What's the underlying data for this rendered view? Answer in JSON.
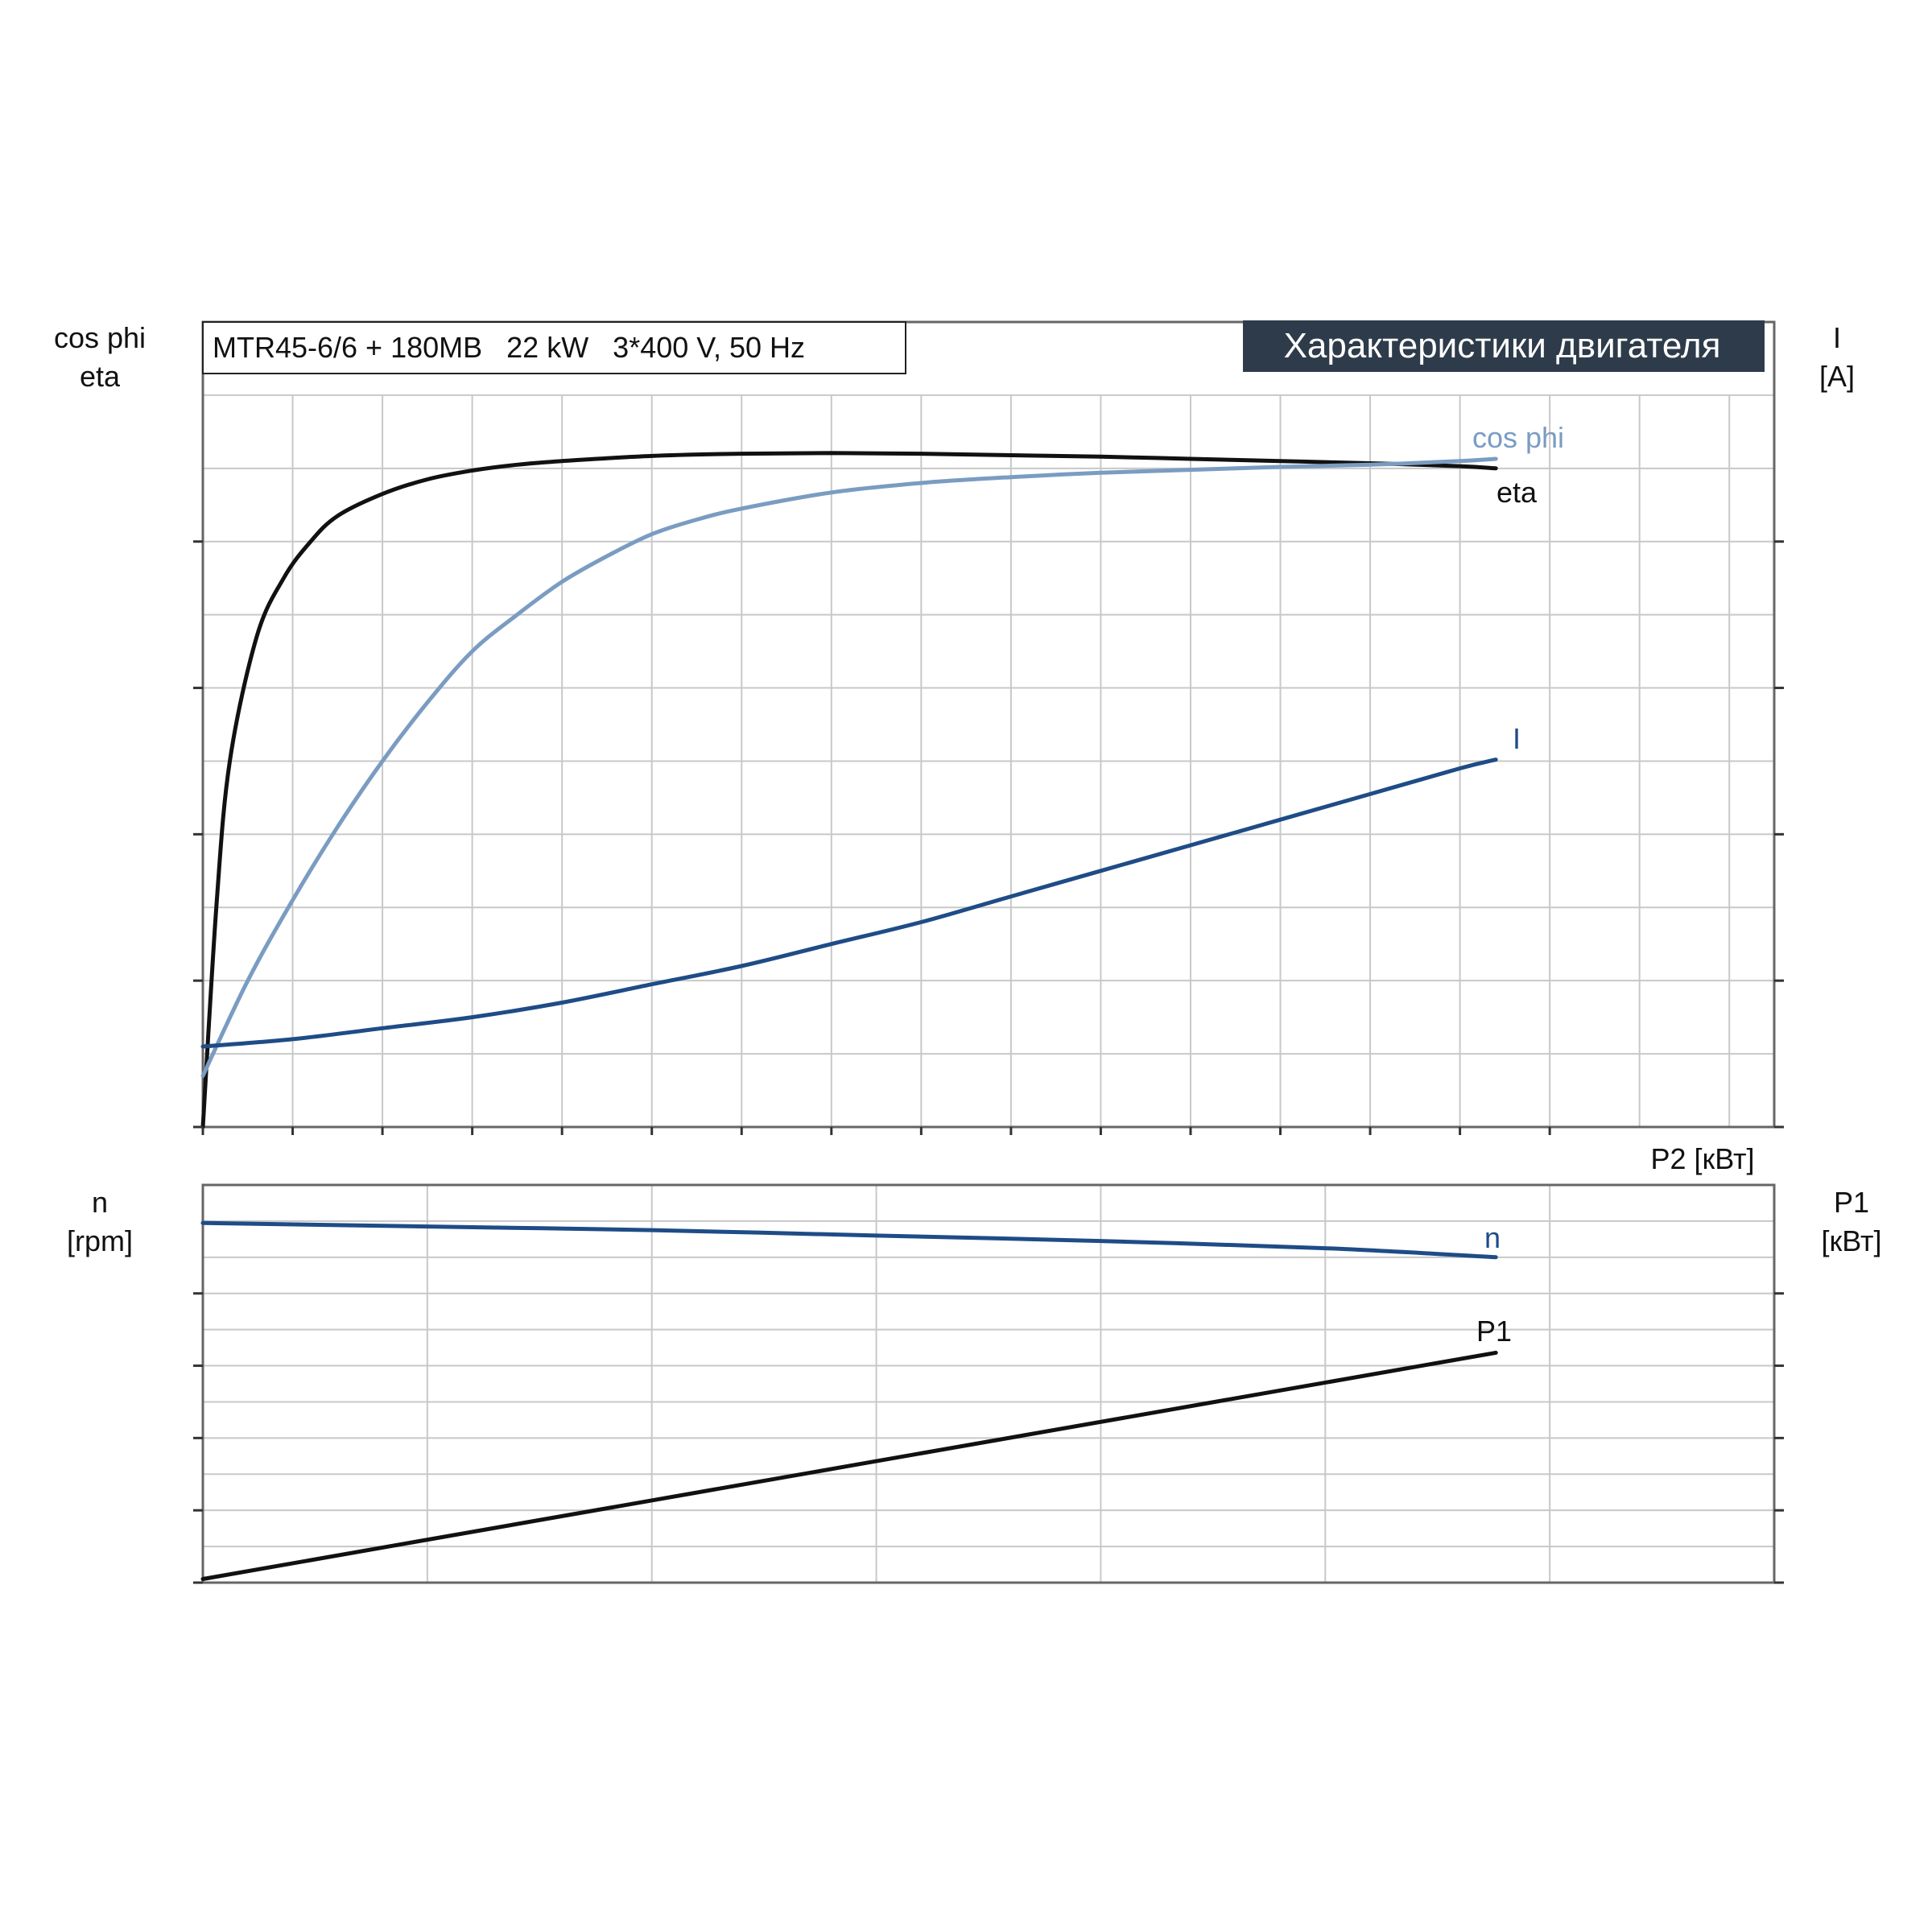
{
  "header": {
    "model": "MTR45-6/6 + 180MB   22 kW   3*400 V, 50 Hz",
    "banner": "Характеристики двигателя"
  },
  "colors": {
    "grid": "#c8c8c8",
    "axis": "#666666",
    "eta": "#111111",
    "cosphi": "#7a9cc2",
    "current": "#1e4c86",
    "speed": "#1e4c86",
    "p1": "#111111",
    "banner_bg": "#2e3b4a",
    "banner_fg": "#ffffff"
  },
  "chart_data": [
    {
      "type": "line",
      "panel": "upper",
      "x_axis": {
        "label": "P2 [кВт]",
        "range": [
          0,
          35
        ],
        "ticks": [
          0,
          2,
          4,
          6,
          8,
          10,
          12,
          14,
          16,
          18,
          20,
          22,
          24,
          26,
          28,
          30
        ]
      },
      "left_axis": {
        "label_lines": [
          "cos phi",
          "eta"
        ],
        "range": [
          0,
          1.1
        ],
        "ticks": [
          "0.0",
          "0.2",
          "0.4",
          "0.6",
          "0.8"
        ]
      },
      "right_axis": {
        "label_lines": [
          "I",
          "[A]"
        ],
        "range": [
          0,
          110
        ],
        "ticks": [
          "0",
          "20",
          "40",
          "60",
          "80"
        ]
      },
      "grid": true,
      "series": [
        {
          "name": "eta",
          "axis": "left",
          "x": [
            0,
            0.3,
            0.6,
            1.2,
            1.8,
            2.4,
            3,
            4,
            5,
            6,
            7,
            8,
            10,
            12,
            14,
            16,
            18,
            20,
            22,
            24,
            26,
            28,
            28.8
          ],
          "values": [
            0,
            0.3,
            0.5,
            0.67,
            0.75,
            0.8,
            0.835,
            0.865,
            0.885,
            0.897,
            0.905,
            0.91,
            0.917,
            0.92,
            0.921,
            0.92,
            0.918,
            0.916,
            0.913,
            0.91,
            0.907,
            0.903,
            0.9
          ]
        },
        {
          "name": "cos phi",
          "axis": "left",
          "x": [
            0,
            1,
            2,
            3,
            4,
            5,
            6,
            7,
            8,
            9,
            10,
            11,
            12,
            14,
            16,
            18,
            20,
            22,
            24,
            26,
            28,
            28.8
          ],
          "values": [
            0.07,
            0.2,
            0.31,
            0.41,
            0.5,
            0.58,
            0.65,
            0.7,
            0.745,
            0.78,
            0.81,
            0.83,
            0.845,
            0.867,
            0.88,
            0.888,
            0.894,
            0.898,
            0.902,
            0.905,
            0.91,
            0.913
          ]
        },
        {
          "name": "I",
          "axis": "right",
          "x": [
            0,
            2,
            4,
            6,
            8,
            10,
            12,
            14,
            16,
            18,
            20,
            22,
            24,
            26,
            28,
            28.8
          ],
          "values": [
            11,
            12,
            13.5,
            15,
            17,
            19.5,
            22,
            25,
            28,
            31.5,
            35,
            38.5,
            42,
            45.5,
            49,
            50.2
          ]
        }
      ]
    },
    {
      "type": "line",
      "panel": "lower",
      "x_axis": {
        "range": [
          0,
          35
        ]
      },
      "left_axis": {
        "label_lines": [
          "n",
          "[rpm]"
        ],
        "range": [
          2000,
          3100
        ],
        "ticks": [
          "2000",
          "2200",
          "2400",
          "2600",
          "2800"
        ]
      },
      "right_axis": {
        "label_lines": [
          "P1",
          "[кВт]"
        ],
        "range": [
          0,
          55
        ],
        "ticks": [
          "0",
          "10",
          "20",
          "30",
          "40"
        ]
      },
      "grid": true,
      "series": [
        {
          "name": "n",
          "axis": "left",
          "x": [
            0,
            5,
            10,
            15,
            20,
            25,
            28.8
          ],
          "values": [
            2995,
            2985,
            2975,
            2960,
            2945,
            2925,
            2900
          ]
        },
        {
          "name": "P1",
          "axis": "right",
          "x": [
            0,
            28.8
          ],
          "values": [
            0.5,
            31.8
          ]
        }
      ]
    }
  ]
}
